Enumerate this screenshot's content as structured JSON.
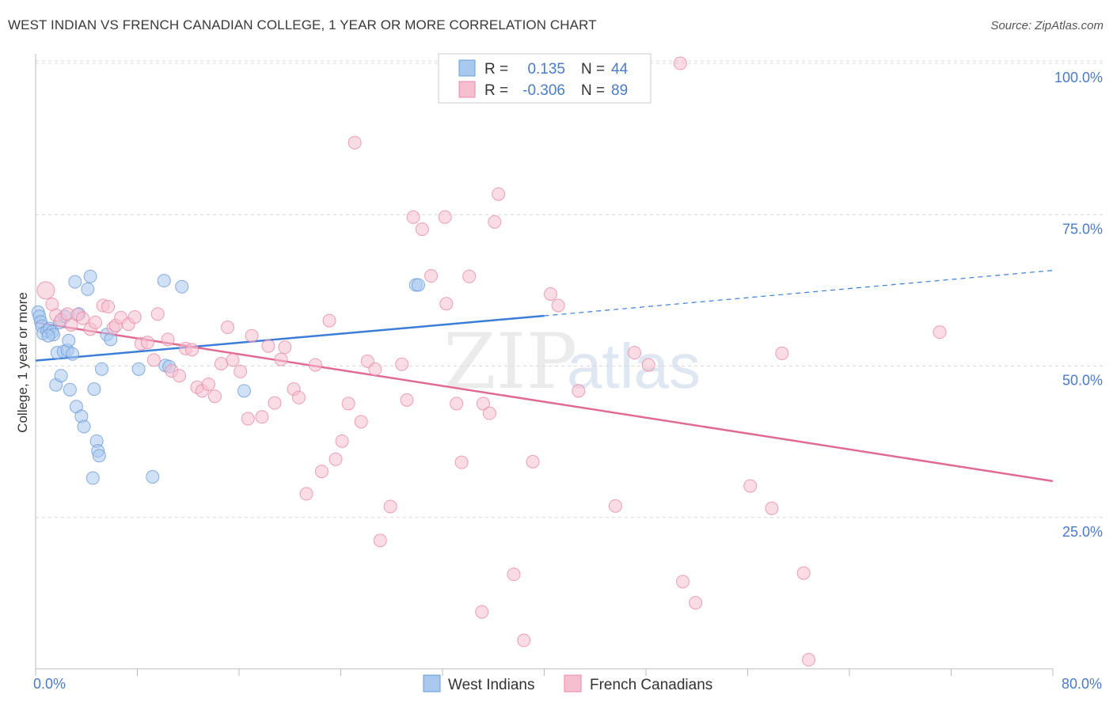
{
  "header": {
    "title": "WEST INDIAN VS FRENCH CANADIAN COLLEGE, 1 YEAR OR MORE CORRELATION CHART",
    "source": "Source: ZipAtlas.com"
  },
  "watermark": {
    "zip": "ZIP",
    "atlas": "atlas"
  },
  "colors": {
    "blue_fill": "#a9c8ee",
    "blue_stroke": "#6b9bd8",
    "blue_line": "#3b7dd8",
    "pink_fill": "#f6bfd0",
    "pink_stroke": "#e98aa8",
    "pink_line": "#e06a95",
    "tick_label": "#4a7bc8",
    "grid": "#d8d8d8"
  },
  "legend": {
    "rows": [
      {
        "r_label": "R =",
        "r_value": "0.135",
        "n_label": "N =",
        "n_value": "44"
      },
      {
        "r_label": "R =",
        "r_value": "-0.306",
        "n_label": "N =",
        "n_value": "89"
      }
    ]
  },
  "bottom_legend": [
    "West Indians",
    "French Canadians"
  ],
  "chart_data": {
    "type": "scatter",
    "title": "WEST INDIAN VS FRENCH CANADIAN COLLEGE, 1 YEAR OR MORE CORRELATION CHART",
    "xlabel": "",
    "ylabel": "College, 1 year or more",
    "xlim": [
      0,
      80
    ],
    "ylim": [
      0,
      100
    ],
    "x_tick_labels": [
      "0.0%",
      "80.0%"
    ],
    "y_tick_labels": [
      "25.0%",
      "50.0%",
      "75.0%",
      "100.0%"
    ],
    "y_ticks": [
      25,
      50,
      75,
      100
    ],
    "grid": true,
    "legend_position": "top-center",
    "series": [
      {
        "name": "West Indians",
        "R": 0.135,
        "N": 44,
        "trend": {
          "x0": 0,
          "y0": 50.9,
          "x1": 40,
          "y1": 58.3,
          "dashed_to_x": 80,
          "dashed_to_y": 65.8
        },
        "points": [
          [
            0.2,
            58.9
          ],
          [
            0.3,
            58.2
          ],
          [
            0.4,
            57.3
          ],
          [
            0.5,
            56.6
          ],
          [
            0.6,
            55.4
          ],
          [
            0.9,
            55.8
          ],
          [
            1.1,
            56.2
          ],
          [
            1.3,
            55.6
          ],
          [
            1.4,
            55.2
          ],
          [
            1.6,
            46.9
          ],
          [
            1.7,
            52.2
          ],
          [
            1.9,
            57.2
          ],
          [
            2.0,
            48.4
          ],
          [
            2.2,
            52.4
          ],
          [
            2.3,
            58.2
          ],
          [
            2.5,
            52.6
          ],
          [
            2.6,
            54.2
          ],
          [
            2.7,
            46.1
          ],
          [
            2.9,
            52.0
          ],
          [
            3.1,
            63.9
          ],
          [
            3.2,
            43.3
          ],
          [
            3.4,
            58.6
          ],
          [
            3.6,
            41.7
          ],
          [
            3.8,
            40.0
          ],
          [
            4.1,
            62.7
          ],
          [
            4.3,
            64.8
          ],
          [
            4.5,
            31.5
          ],
          [
            4.6,
            46.2
          ],
          [
            4.8,
            37.6
          ],
          [
            4.9,
            36.0
          ],
          [
            5.0,
            35.2
          ],
          [
            5.2,
            49.5
          ],
          [
            5.6,
            55.2
          ],
          [
            5.9,
            54.4
          ],
          [
            8.1,
            49.5
          ],
          [
            9.2,
            31.7
          ],
          [
            10.1,
            64.1
          ],
          [
            10.2,
            50.1
          ],
          [
            10.5,
            49.9
          ],
          [
            11.5,
            63.1
          ],
          [
            16.4,
            45.9
          ],
          [
            29.9,
            63.4
          ],
          [
            30.1,
            63.4
          ],
          [
            1.0,
            55.0
          ]
        ]
      },
      {
        "name": "French Canadians",
        "R": -0.306,
        "N": 89,
        "trend": {
          "x0": 0,
          "y0": 57.2,
          "x1": 80,
          "y1": 31.0
        },
        "points": [
          [
            0.8,
            62.5
          ],
          [
            1.3,
            60.2
          ],
          [
            1.6,
            58.4
          ],
          [
            2.0,
            57.6
          ],
          [
            2.5,
            58.6
          ],
          [
            2.8,
            56.8
          ],
          [
            3.3,
            58.5
          ],
          [
            3.7,
            57.9
          ],
          [
            4.3,
            56.1
          ],
          [
            4.7,
            57.2
          ],
          [
            5.3,
            60.0
          ],
          [
            5.7,
            59.8
          ],
          [
            6.1,
            56.3
          ],
          [
            6.3,
            56.7
          ],
          [
            6.7,
            58.0
          ],
          [
            7.3,
            56.9
          ],
          [
            7.8,
            58.1
          ],
          [
            8.3,
            53.7
          ],
          [
            8.8,
            53.9
          ],
          [
            9.3,
            51.0
          ],
          [
            9.6,
            58.6
          ],
          [
            10.4,
            54.4
          ],
          [
            10.7,
            49.2
          ],
          [
            11.3,
            48.4
          ],
          [
            11.8,
            52.9
          ],
          [
            12.3,
            52.7
          ],
          [
            12.7,
            46.5
          ],
          [
            13.1,
            45.9
          ],
          [
            13.6,
            47.0
          ],
          [
            14.1,
            45.0
          ],
          [
            14.6,
            50.4
          ],
          [
            15.1,
            56.4
          ],
          [
            15.5,
            51.0
          ],
          [
            16.1,
            49.1
          ],
          [
            16.7,
            41.3
          ],
          [
            17.0,
            55.0
          ],
          [
            17.8,
            41.6
          ],
          [
            18.3,
            53.3
          ],
          [
            18.8,
            43.9
          ],
          [
            19.3,
            51.1
          ],
          [
            19.6,
            53.1
          ],
          [
            20.3,
            46.2
          ],
          [
            20.7,
            44.8
          ],
          [
            21.3,
            28.9
          ],
          [
            22.0,
            50.2
          ],
          [
            22.5,
            32.6
          ],
          [
            23.1,
            57.5
          ],
          [
            23.6,
            34.6
          ],
          [
            24.1,
            37.6
          ],
          [
            24.6,
            43.8
          ],
          [
            25.1,
            86.9
          ],
          [
            25.6,
            40.8
          ],
          [
            26.1,
            50.8
          ],
          [
            26.7,
            49.5
          ],
          [
            27.1,
            21.2
          ],
          [
            27.9,
            26.8
          ],
          [
            28.8,
            50.3
          ],
          [
            29.2,
            44.4
          ],
          [
            29.7,
            74.6
          ],
          [
            30.4,
            72.6
          ],
          [
            31.1,
            64.9
          ],
          [
            32.2,
            74.6
          ],
          [
            32.3,
            60.3
          ],
          [
            33.1,
            43.8
          ],
          [
            33.5,
            34.1
          ],
          [
            34.1,
            64.8
          ],
          [
            35.1,
            9.4
          ],
          [
            35.2,
            43.8
          ],
          [
            35.7,
            42.2
          ],
          [
            36.1,
            73.8
          ],
          [
            36.4,
            78.4
          ],
          [
            37.6,
            15.6
          ],
          [
            38.4,
            4.7
          ],
          [
            39.1,
            34.2
          ],
          [
            40.5,
            61.9
          ],
          [
            41.1,
            60.0
          ],
          [
            42.7,
            45.9
          ],
          [
            45.6,
            26.9
          ],
          [
            47.1,
            52.2
          ],
          [
            48.2,
            50.2
          ],
          [
            50.7,
            100.0
          ],
          [
            50.9,
            14.4
          ],
          [
            51.9,
            10.9
          ],
          [
            56.2,
            30.2
          ],
          [
            57.9,
            26.5
          ],
          [
            58.7,
            52.1
          ],
          [
            60.4,
            15.8
          ],
          [
            60.8,
            1.5
          ],
          [
            71.1,
            55.6
          ]
        ]
      }
    ]
  }
}
